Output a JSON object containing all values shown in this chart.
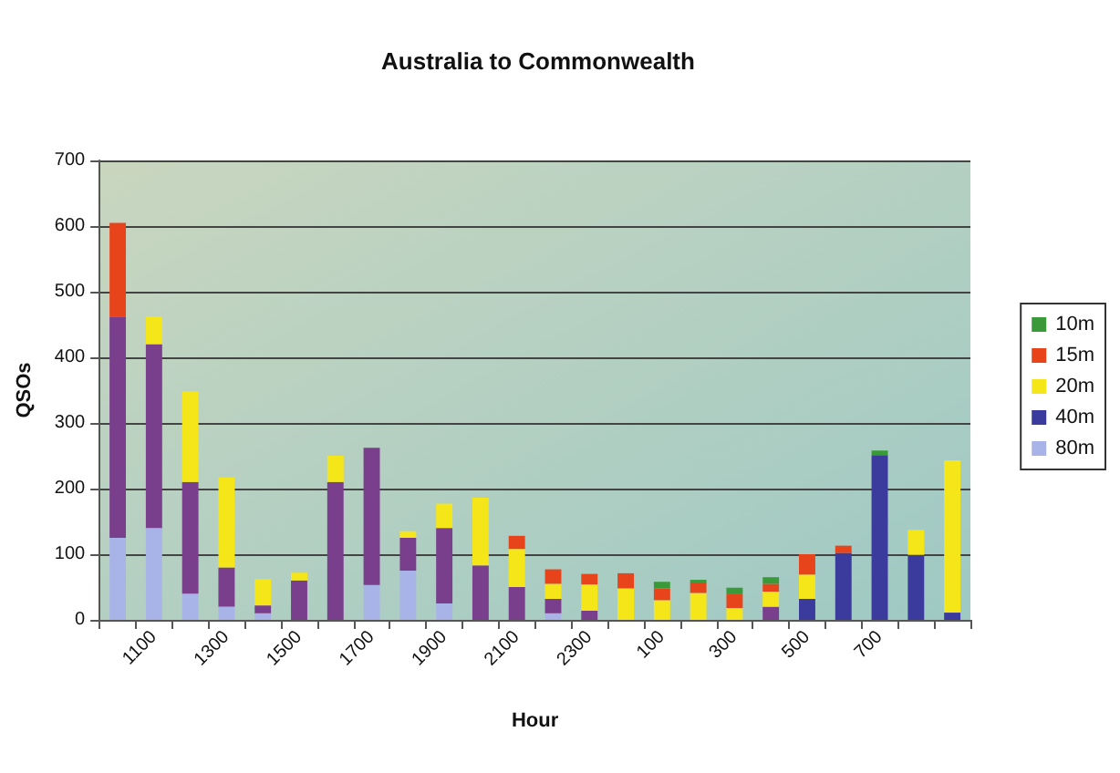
{
  "chart_data": {
    "type": "bar",
    "stacked": true,
    "title": "Australia to Commonwealth",
    "xlabel": "Hour",
    "ylabel": "QSOs",
    "categories": [
      null,
      "1100",
      null,
      "1300",
      null,
      "1500",
      null,
      "1700",
      null,
      "1900",
      null,
      "2100",
      null,
      "2300",
      null,
      "100",
      null,
      "300",
      null,
      "500",
      null,
      "700",
      null,
      null
    ],
    "series": [
      {
        "name": "80m",
        "color": "#a8b4e8",
        "values": [
          125,
          140,
          40,
          20,
          10,
          null,
          null,
          53,
          75,
          25,
          null,
          null,
          10,
          null,
          null,
          null,
          null,
          null,
          null,
          null,
          null,
          null,
          null,
          null
        ]
      },
      {
        "color": "#7a3f8c",
        "values": [
          337,
          280,
          170,
          60,
          12,
          60,
          210,
          209,
          50,
          115,
          83,
          50,
          22,
          14,
          null,
          null,
          null,
          null,
          20,
          null,
          null,
          null,
          null,
          null
        ]
      },
      {
        "name": "40m",
        "color": "#3b3b9e",
        "values": [
          null,
          null,
          null,
          null,
          null,
          null,
          null,
          null,
          null,
          null,
          null,
          null,
          null,
          null,
          null,
          null,
          null,
          null,
          null,
          32,
          102,
          251,
          99,
          11
        ]
      },
      {
        "name": "20m",
        "color": "#f5e61a",
        "values": [
          null,
          42,
          138,
          137,
          40,
          12,
          40,
          null,
          10,
          37,
          103,
          58,
          23,
          40,
          48,
          30,
          41,
          18,
          23,
          37,
          null,
          null,
          38,
          232
        ]
      },
      {
        "name": "15m",
        "color": "#e8441c",
        "values": [
          143,
          null,
          null,
          null,
          null,
          null,
          null,
          null,
          null,
          null,
          null,
          20,
          22,
          16,
          23,
          18,
          16,
          21,
          12,
          31,
          11,
          null,
          null,
          null
        ]
      },
      {
        "name": "10m",
        "color": "#3a9a3a",
        "values": [
          null,
          null,
          null,
          null,
          null,
          null,
          null,
          null,
          null,
          null,
          null,
          null,
          null,
          null,
          null,
          10,
          4,
          10,
          10,
          null,
          null,
          7,
          null,
          null
        ]
      }
    ],
    "ylim": [
      0,
      700
    ],
    "yticks": [
      0,
      100,
      200,
      300,
      400,
      500,
      600,
      700
    ],
    "grid": "y",
    "legend": "right"
  }
}
